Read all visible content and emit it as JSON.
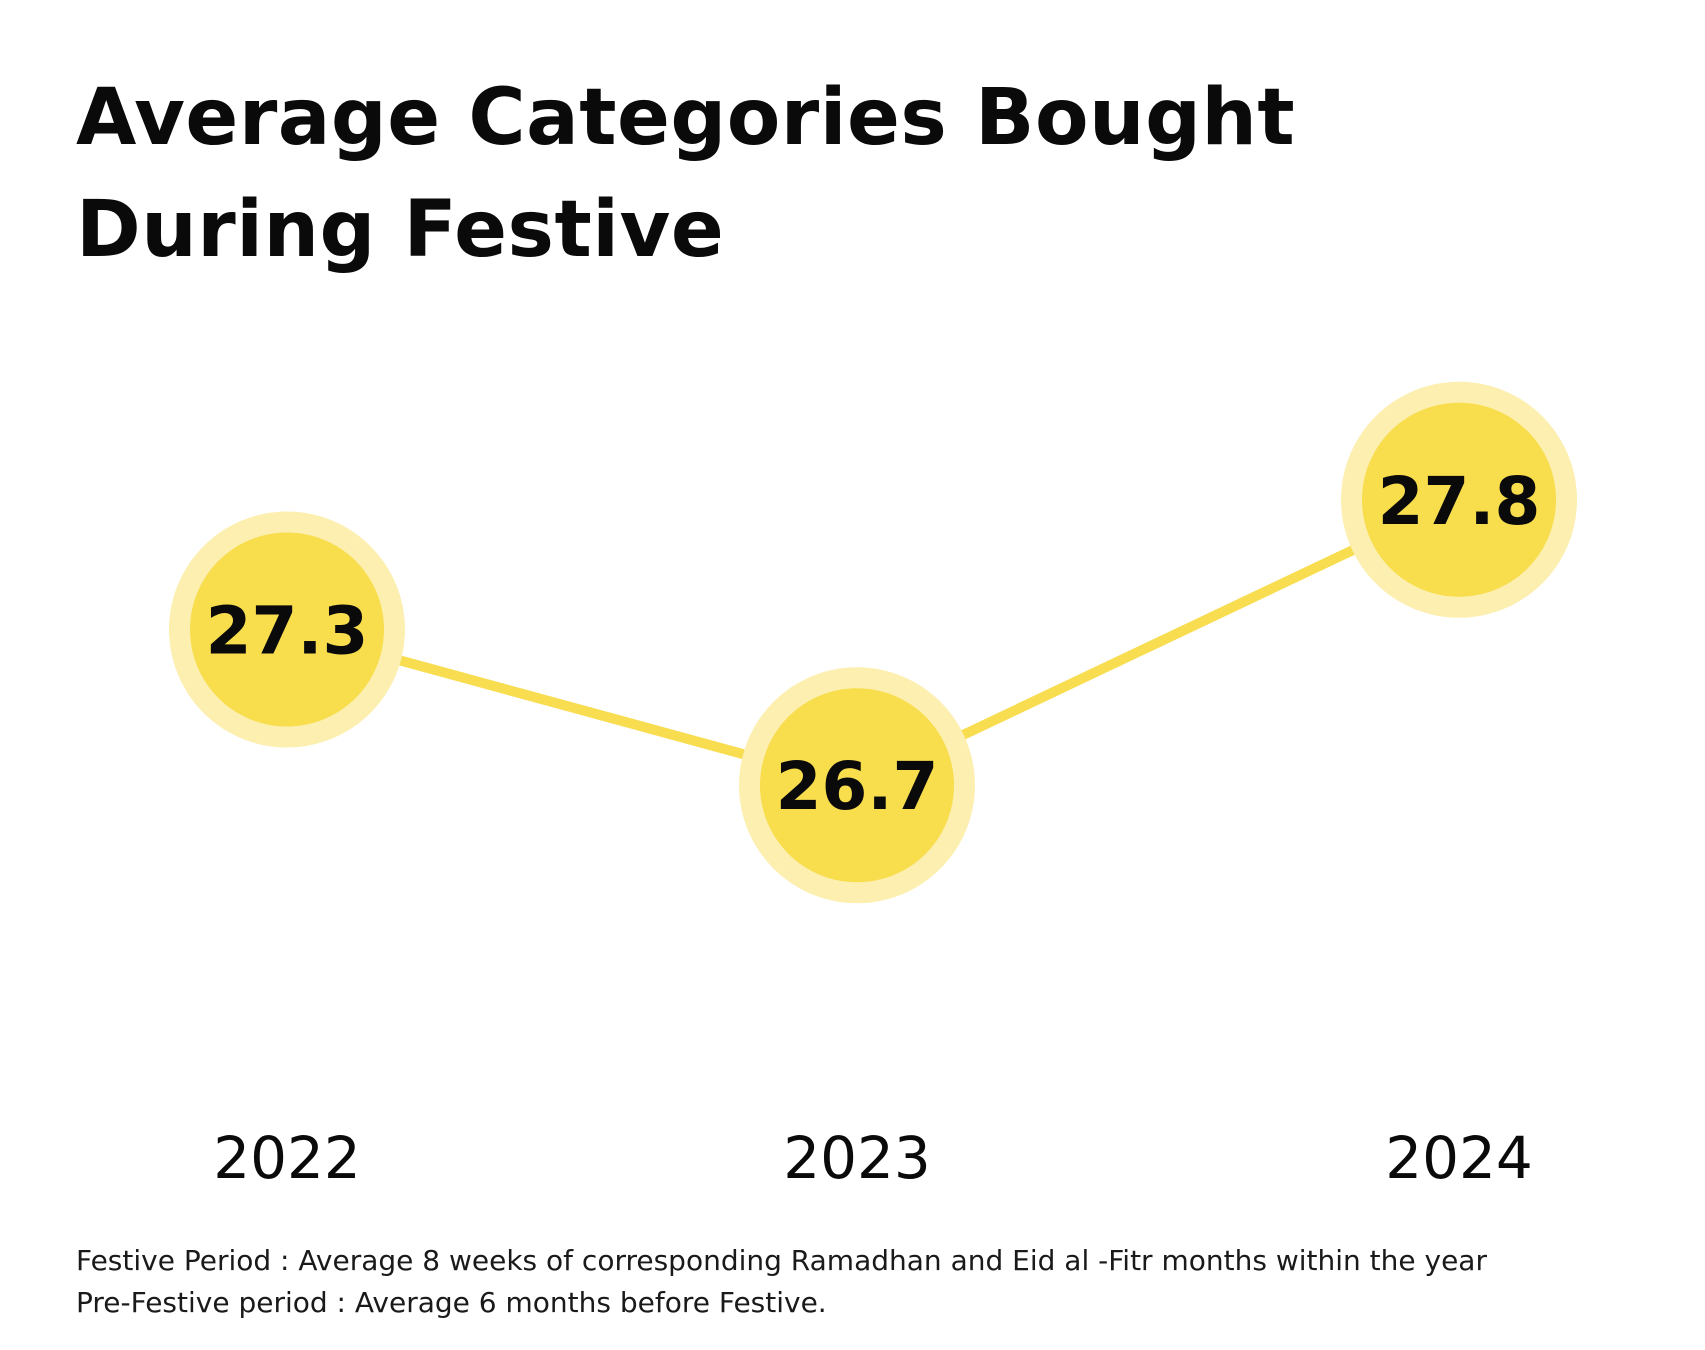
{
  "title": "Average Categories Bought During Festive",
  "colors": {
    "line": "#F7DD4F",
    "marker_fill": "#F8DD4D",
    "marker_halo": "#FCEFB0",
    "text": "#0A0A0A"
  },
  "chart_data": {
    "type": "line",
    "title": "Average Categories Bought During Festive",
    "xlabel": "",
    "ylabel": "",
    "categories": [
      "2022",
      "2023",
      "2024"
    ],
    "values": [
      27.3,
      26.7,
      27.8
    ],
    "data_labels": [
      "27.3",
      "26.7",
      "27.8"
    ],
    "ylim": [
      26.2,
      28.3
    ],
    "grid": false,
    "legend": "none"
  },
  "footnotes": [
    "Festive Period : Average 8 weeks of corresponding Ramadhan and Eid al -Fitr months within the year",
    "Pre-Festive period : Average 6 months before Festive."
  ]
}
